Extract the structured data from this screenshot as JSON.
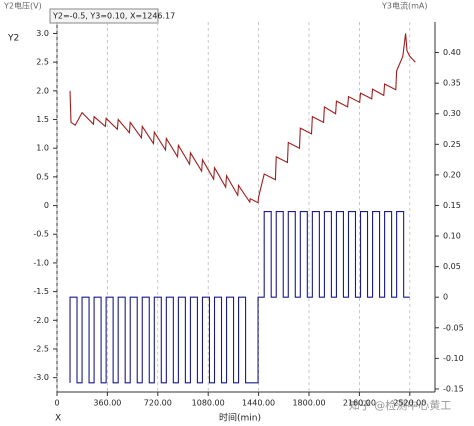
{
  "chart_data": {
    "type": "line",
    "header": "Y2=-0.5, Y3=0.10, X=1246.17",
    "y_label": "Y2电压(V)",
    "y2_label": "Y3电流(mA)",
    "y_axis_name": "Y2",
    "x_axis_name": "X",
    "x_label": "时间(min)",
    "watermark": "知乎 @检测中心黄工",
    "xlim": [
      0,
      2700
    ],
    "xticks": [
      0,
      {
        "value": 360,
        "label": "360.00"
      },
      {
        "value": 720,
        "label": "720.00"
      },
      {
        "value": 1080,
        "label": "1080.00"
      },
      {
        "value": 1440,
        "label": "1440.00"
      },
      {
        "value": 1800,
        "label": "1800.00"
      },
      {
        "value": 2160,
        "label": "2160.00"
      },
      {
        "value": 2520,
        "label": "2520.00"
      }
    ],
    "ylim": [
      -3.25,
      3.2
    ],
    "yticks": [
      {
        "value": -3,
        "label": "-3.0"
      },
      -2.5,
      {
        "value": -2,
        "label": "-2.0"
      },
      -1.5,
      {
        "value": -1,
        "label": "-1.0"
      },
      -0.5,
      0,
      0.5,
      {
        "value": 1,
        "label": "1.0"
      },
      1.5,
      {
        "value": 2,
        "label": "2.0"
      },
      2.5,
      {
        "value": 3,
        "label": "3.0"
      }
    ],
    "y2lim": [
      -0.155,
      0.45
    ],
    "y2ticks": [
      {
        "value": -0.15,
        "label": "-0.15"
      },
      {
        "value": -0.1,
        "label": "-0.10"
      },
      {
        "value": -0.05,
        "label": "-0.05"
      },
      0,
      {
        "value": 0.05,
        "label": "0.05"
      },
      {
        "value": 0.1,
        "label": "0.10"
      },
      {
        "value": 0.15,
        "label": "0.15"
      },
      {
        "value": 0.2,
        "label": "0.20"
      },
      {
        "value": 0.25,
        "label": "0.25"
      },
      {
        "value": 0.3,
        "label": "0.30"
      },
      {
        "value": 0.35,
        "label": "0.35"
      },
      {
        "value": 0.4,
        "label": "0.40"
      }
    ],
    "grid": true,
    "series": [
      {
        "color": "#a01e1e",
        "x": [
          93,
          100,
          130,
          179,
          260,
          265,
          345,
          351,
          431,
          437,
          517,
          523,
          603,
          609,
          689,
          695,
          775,
          781,
          861,
          867,
          947,
          953,
          1033,
          1039,
          1119,
          1125,
          1205,
          1211,
          1291,
          1297,
          1377,
          1380,
          1436,
          1440,
          1480,
          1560,
          1566,
          1646,
          1652,
          1732,
          1738,
          1818,
          1824,
          1904,
          1910,
          1990,
          1996,
          2076,
          2082,
          2162,
          2168,
          2248,
          2254,
          2334,
          2340,
          2420,
          2426,
          2470,
          2490,
          2500,
          2520,
          2560
        ],
        "values": [
          2.0,
          1.45,
          1.4,
          1.62,
          1.42,
          1.55,
          1.38,
          1.52,
          1.33,
          1.5,
          1.27,
          1.45,
          1.18,
          1.38,
          1.08,
          1.28,
          0.97,
          1.17,
          0.85,
          1.05,
          0.72,
          0.92,
          0.6,
          0.8,
          0.46,
          0.66,
          0.32,
          0.52,
          0.18,
          0.35,
          0.06,
          0.12,
          0.05,
          0.15,
          0.55,
          0.45,
          0.85,
          0.75,
          1.1,
          1.0,
          1.35,
          1.25,
          1.55,
          1.45,
          1.72,
          1.6,
          1.82,
          1.72,
          1.9,
          1.8,
          1.96,
          1.86,
          2.03,
          1.92,
          2.12,
          2.02,
          2.35,
          2.6,
          3.0,
          2.7,
          2.6,
          2.5
        ]
      },
      {
        "color": "#1a1a8c",
        "axis": "y2",
        "x": [
          93,
          93,
          143,
          143,
          179,
          179,
          229,
          229,
          265,
          265,
          315,
          315,
          351,
          351,
          401,
          401,
          437,
          437,
          487,
          487,
          523,
          523,
          573,
          573,
          609,
          609,
          659,
          659,
          695,
          695,
          745,
          745,
          781,
          781,
          831,
          831,
          867,
          867,
          917,
          917,
          953,
          953,
          1003,
          1003,
          1039,
          1039,
          1089,
          1089,
          1125,
          1125,
          1175,
          1175,
          1211,
          1211,
          1261,
          1261,
          1297,
          1297,
          1347,
          1347,
          1436,
          1436,
          1480,
          1480,
          1530,
          1530,
          1566,
          1566,
          1616,
          1616,
          1652,
          1652,
          1702,
          1702,
          1738,
          1738,
          1788,
          1788,
          1824,
          1824,
          1874,
          1874,
          1910,
          1910,
          1960,
          1960,
          1996,
          1996,
          2046,
          2046,
          2082,
          2082,
          2132,
          2132,
          2168,
          2168,
          2218,
          2218,
          2254,
          2254,
          2304,
          2304,
          2340,
          2340,
          2390,
          2390,
          2426,
          2426,
          2476,
          2476,
          2520
        ],
        "values": [
          -0.14,
          0,
          0,
          -0.14,
          -0.14,
          0,
          0,
          -0.14,
          -0.14,
          0,
          0,
          -0.14,
          -0.14,
          0,
          0,
          -0.14,
          -0.14,
          0,
          0,
          -0.14,
          -0.14,
          0,
          0,
          -0.14,
          -0.14,
          0,
          0,
          -0.14,
          -0.14,
          0,
          0,
          -0.14,
          -0.14,
          0,
          0,
          -0.14,
          -0.14,
          0,
          0,
          -0.14,
          -0.14,
          0,
          0,
          -0.14,
          -0.14,
          0,
          0,
          -0.14,
          -0.14,
          0,
          0,
          -0.14,
          -0.14,
          0,
          0,
          -0.14,
          -0.14,
          0,
          0,
          -0.14,
          -0.14,
          0,
          0,
          0.14,
          0.14,
          0,
          0,
          0.14,
          0.14,
          0,
          0,
          0.14,
          0.14,
          0,
          0,
          0.14,
          0.14,
          0,
          0,
          0.14,
          0.14,
          0,
          0,
          0.14,
          0.14,
          0,
          0,
          0.14,
          0.14,
          0,
          0,
          0.14,
          0.14,
          0,
          0,
          0.14,
          0.14,
          0,
          0,
          0.14,
          0.14,
          0,
          0,
          0.14,
          0.14,
          0,
          0,
          0.14,
          0.14,
          0,
          0
        ]
      }
    ]
  }
}
